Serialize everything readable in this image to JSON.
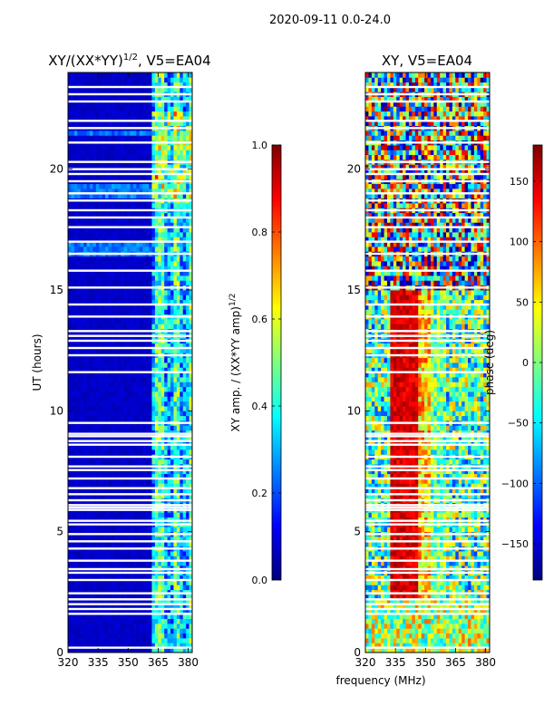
{
  "figure_title": "2020-09-11 0.0-24.0",
  "chart_data": [
    {
      "type": "heatmap",
      "title_main": "XY/(XX*YY)",
      "title_sup": "1/2",
      "title_tail": ", V5=EA04",
      "xlabel": "",
      "ylabel": "UT (hours)",
      "xlim": [
        320,
        382
      ],
      "ylim": [
        0,
        24
      ],
      "xticks": [
        320,
        335,
        350,
        365,
        380
      ],
      "xtick_labels": [
        "320",
        "335",
        "350",
        "365",
        "380"
      ],
      "yticks": [
        0,
        5,
        10,
        15,
        20
      ],
      "ytick_labels": [
        "0",
        "5",
        "10",
        "15",
        "20"
      ],
      "colorbar": {
        "label_main": "XY amp. / (XX*YY amp)",
        "label_sup": "1/2",
        "range": [
          0,
          1
        ],
        "ticks": [
          0.0,
          0.2,
          0.4,
          0.6,
          0.8,
          1.0
        ],
        "tick_labels": [
          "0.0",
          "0.2",
          "0.4",
          "0.6",
          "0.8",
          "1.0"
        ]
      },
      "description_values": {
        "low_band_mhz": [
          320,
          362
        ],
        "low_band_level": 0.05,
        "high_band_mhz": [
          362,
          382
        ],
        "high_band_level": 0.45
      }
    },
    {
      "type": "heatmap",
      "title_main": "XY, V5=EA04",
      "xlabel": "frequency (MHz)",
      "ylabel": "",
      "xlim": [
        320,
        382
      ],
      "ylim": [
        0,
        24
      ],
      "xticks": [
        320,
        335,
        350,
        365,
        380
      ],
      "xtick_labels": [
        "320",
        "335",
        "350",
        "365",
        "380"
      ],
      "yticks": [
        0,
        5,
        10,
        15,
        20
      ],
      "ytick_labels": [
        "0",
        "5",
        "10",
        "15",
        "20"
      ],
      "colorbar": {
        "label_main": "phase (deg)",
        "range": [
          -180,
          180
        ],
        "ticks": [
          -150,
          -100,
          -50,
          0,
          50,
          100,
          150
        ],
        "tick_labels": [
          "−150",
          "−100",
          "−50",
          "0",
          "50",
          "100",
          "150"
        ]
      }
    }
  ],
  "flagged_rows_hours": [
    0.2,
    1.6,
    1.8,
    2.0,
    2.2,
    2.45,
    3.0,
    3.3,
    3.45,
    3.8,
    4.3,
    4.6,
    4.9,
    5.3,
    5.45,
    5.9,
    6.0,
    6.1,
    6.3,
    6.55,
    6.8,
    7.2,
    7.55,
    7.7,
    8.1,
    8.6,
    8.75,
    8.95,
    9.05,
    9.5,
    11.6,
    12.3,
    12.6,
    12.9,
    13.1,
    13.3,
    13.9,
    14.4,
    15.1,
    15.8,
    16.5,
    17.0,
    17.6,
    18.0,
    18.3,
    18.7,
    19.0,
    19.5,
    19.8,
    20.0,
    20.3,
    21.1,
    21.7,
    22.0,
    22.8,
    23.1,
    23.4
  ]
}
